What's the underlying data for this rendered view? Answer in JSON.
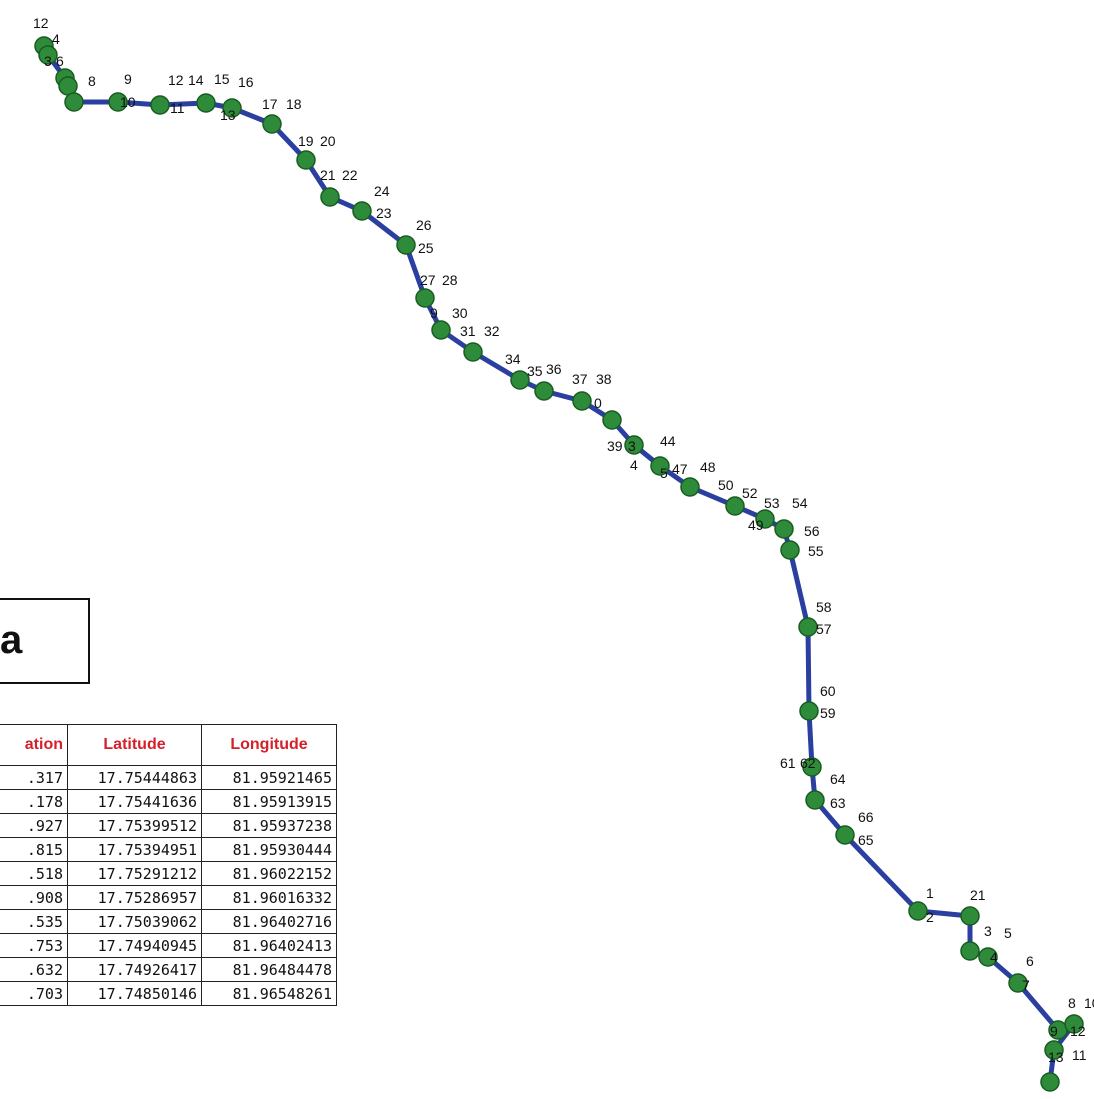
{
  "panel_label": "a",
  "table": {
    "headers": [
      "ation",
      "Latitude",
      "Longitude"
    ],
    "rows": [
      [
        ".317",
        "17.75444863",
        "81.95921465"
      ],
      [
        ".178",
        "17.75441636",
        "81.95913915"
      ],
      [
        ".927",
        "17.75399512",
        "81.95937238"
      ],
      [
        ".815",
        "17.75394951",
        "81.95930444"
      ],
      [
        ".518",
        "17.75291212",
        "81.96022152"
      ],
      [
        ".908",
        "17.75286957",
        "81.96016332"
      ],
      [
        ".535",
        "17.75039062",
        "81.96402716"
      ],
      [
        ".753",
        "17.74940945",
        "81.96402413"
      ],
      [
        ".632",
        "17.74926417",
        "81.96484478"
      ],
      [
        ".703",
        "17.74850146",
        "81.96548261"
      ]
    ]
  },
  "route_labels": [
    "12",
    "4",
    "3",
    "6",
    "8",
    "9",
    "10",
    "12",
    "14",
    "15",
    "16",
    "11",
    "13",
    "17",
    "18",
    "19",
    "20",
    "21",
    "22",
    "24",
    "23",
    "26",
    "25",
    "27",
    "28",
    "9",
    "30",
    "31",
    "32",
    "34",
    "35",
    "36",
    "37",
    "38",
    "0",
    "39",
    "3",
    "44",
    "4",
    "5",
    "47",
    "48",
    "50",
    "52",
    "53",
    "54",
    "49",
    "56",
    "55",
    "58",
    "57",
    "60",
    "59",
    "61",
    "62",
    "64",
    "63",
    "66",
    "65",
    "1",
    "2",
    "21",
    "3",
    "5",
    "4",
    "6",
    "7",
    "8",
    "10",
    "9",
    "12",
    "11",
    "13"
  ],
  "colors": {
    "route": "#2a3fa0",
    "node_fill": "#2e8b3a",
    "node_stroke": "#1a5c22",
    "header_text": "#d4202a"
  }
}
